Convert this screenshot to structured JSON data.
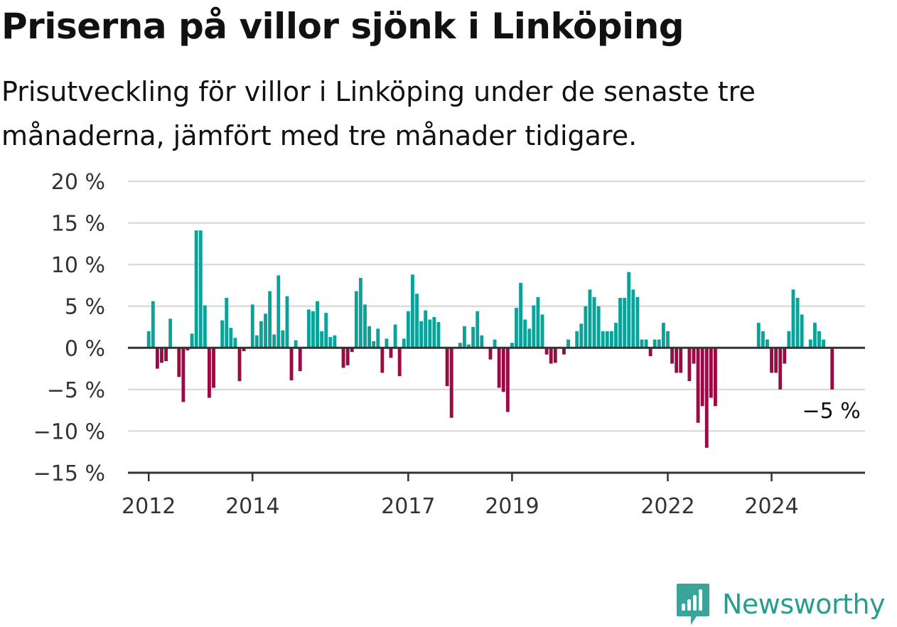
{
  "title": "Priserna på villor sjönk i Linköping",
  "subtitle": "Prisutveckling för villor i Linköping under de senaste tre månaderna, jämfört med tre månader tidigare.",
  "brand": {
    "name": "Newsworthy",
    "icon": "newsworthy-logo-icon",
    "color": "#3aa39a"
  },
  "colors": {
    "positive": "#0aa39a",
    "negative": "#9b0a45",
    "zero_line": "#333333",
    "grid": "#dddddd"
  },
  "chart_data": {
    "type": "bar",
    "title": "",
    "xlabel": "",
    "ylabel": "",
    "ylim": [
      -15,
      20
    ],
    "y_ticks": [
      20,
      15,
      10,
      5,
      0,
      -5,
      -10,
      -15
    ],
    "y_tick_labels": [
      "20 %",
      "15 %",
      "10 %",
      "5 %",
      "0 %",
      "−5 %",
      "−10 %",
      "−15 %"
    ],
    "x_ticks": [
      2012,
      2014,
      2017,
      2019,
      2022,
      2024
    ],
    "x_tick_labels": [
      "2012",
      "2014",
      "2017",
      "2019",
      "2022",
      "2024"
    ],
    "x_range": [
      2011.6,
      2025.8
    ],
    "grid": true,
    "start_year": 2012,
    "months_per_bar": 1,
    "values": [
      2,
      5.6,
      -2.5,
      -1.8,
      -1.6,
      3.5,
      0,
      -3.5,
      -6.5,
      -0.3,
      1.7,
      14.1,
      14.1,
      5.1,
      -6,
      -4.8,
      0,
      3.3,
      6,
      2.4,
      1.2,
      -4,
      -0.4,
      0,
      5.2,
      1.5,
      3.2,
      4.1,
      6.8,
      1.6,
      8.7,
      2.1,
      6.2,
      -3.9,
      0.9,
      -2.8,
      0,
      4.6,
      4.4,
      5.6,
      2,
      4.2,
      1.3,
      1.5,
      0,
      -2.4,
      -2.1,
      -0.5,
      6.8,
      8.4,
      5.2,
      2.6,
      0.8,
      2.3,
      -3,
      1.1,
      -1.2,
      2.8,
      -3.4,
      1.1,
      4.4,
      8.8,
      6.5,
      3.2,
      4.5,
      3.4,
      3.7,
      3.1,
      0,
      -4.6,
      -8.4,
      0,
      0.6,
      2.6,
      0.4,
      2.5,
      4.4,
      1.5,
      0,
      -1.4,
      1,
      -4.8,
      -5.3,
      -7.7,
      0.6,
      4.8,
      7.8,
      3.4,
      2.3,
      5.1,
      6.1,
      4,
      -0.8,
      -1.9,
      -1.8,
      0,
      -0.8,
      1,
      0,
      2,
      2.9,
      5,
      7,
      6.1,
      5,
      2,
      2,
      2,
      3,
      6,
      6,
      9.1,
      7,
      6.1,
      1,
      1,
      -1,
      1,
      1,
      3,
      2,
      -1.9,
      -3,
      -3,
      0,
      -4,
      -1.9,
      -9,
      -7,
      -12,
      -6,
      -7,
      0,
      0,
      0,
      0,
      0,
      0,
      0,
      0,
      0,
      3,
      2,
      1,
      -3,
      -3,
      -5,
      -1.9,
      2,
      7,
      6,
      4,
      0,
      1,
      3,
      2,
      1,
      0,
      -5
    ],
    "annotation": {
      "text": "−5 %",
      "for": "last"
    }
  }
}
